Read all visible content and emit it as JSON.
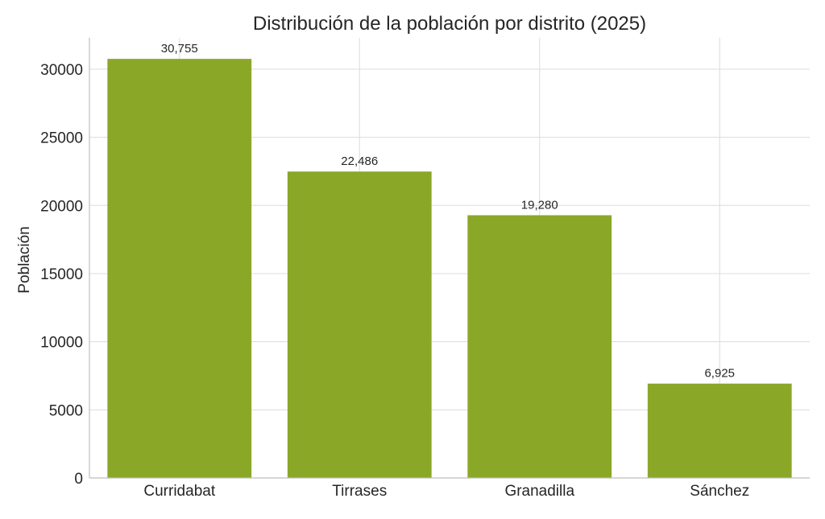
{
  "chart_data": {
    "type": "bar",
    "title": "Distribución de la población por distrito (2025)",
    "xlabel": "",
    "ylabel": "Población",
    "categories": [
      "Curridabat",
      "Tirrases",
      "Granadilla",
      "Sánchez"
    ],
    "values": [
      30755,
      22486,
      19280,
      6925
    ],
    "data_labels": [
      "30,755",
      "22,486",
      "19,280",
      "6,925"
    ],
    "ylim": [
      0,
      32300
    ],
    "yticks": [
      0,
      5000,
      10000,
      15000,
      20000,
      25000,
      30000
    ],
    "ytick_labels": [
      "0",
      "5000",
      "10000",
      "15000",
      "20000",
      "25000",
      "30000"
    ],
    "grid": true,
    "bar_color": "#8aa727",
    "legend": "none"
  }
}
